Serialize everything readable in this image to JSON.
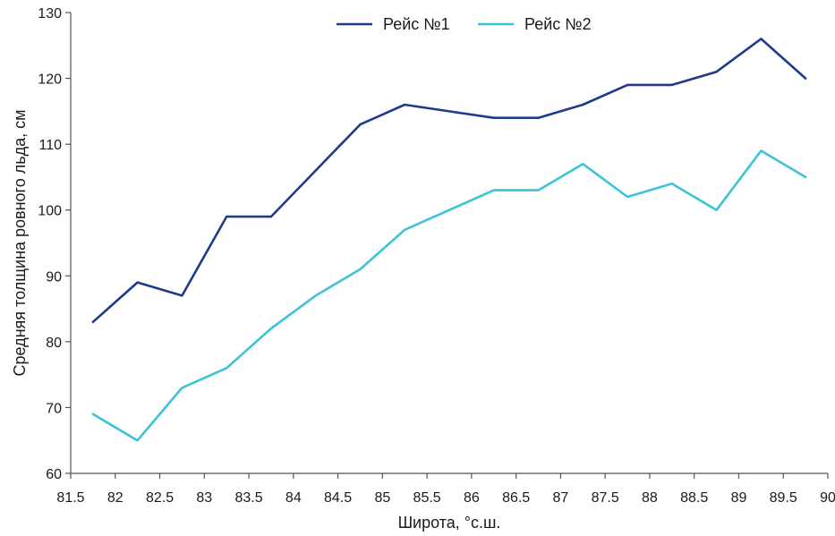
{
  "chart_data": {
    "type": "line",
    "title": "",
    "xlabel": "Широта, °с.ш.",
    "ylabel": "Средняя толщина ровного льда, см",
    "xlim": [
      81.5,
      90
    ],
    "ylim": [
      60,
      130
    ],
    "x_ticks": [
      "81.5",
      "82",
      "82.5",
      "83",
      "83.5",
      "84",
      "84.5",
      "85",
      "85.5",
      "86",
      "86.5",
      "87",
      "87.5",
      "88",
      "88.5",
      "89",
      "89.5",
      "90"
    ],
    "y_ticks": [
      "60",
      "70",
      "80",
      "90",
      "100",
      "110",
      "120",
      "130"
    ],
    "grid": false,
    "legend_position": "top",
    "x": [
      81.75,
      82.25,
      82.75,
      83.25,
      83.75,
      84.25,
      84.75,
      85.25,
      85.75,
      86.25,
      86.75,
      87.25,
      87.75,
      88.25,
      88.75,
      89.25,
      89.75
    ],
    "series": [
      {
        "name": "Рейс №1",
        "color": "#1f3a8a",
        "values": [
          83,
          89,
          87,
          99,
          99,
          106,
          113,
          116,
          115,
          114,
          114,
          116,
          119,
          119,
          121,
          126,
          120
        ]
      },
      {
        "name": "Рейс №2",
        "color": "#3cc3d6",
        "values": [
          69,
          65,
          73,
          76,
          82,
          87,
          91,
          97,
          100,
          103,
          103,
          107,
          102,
          104,
          100,
          109,
          105
        ]
      }
    ]
  }
}
